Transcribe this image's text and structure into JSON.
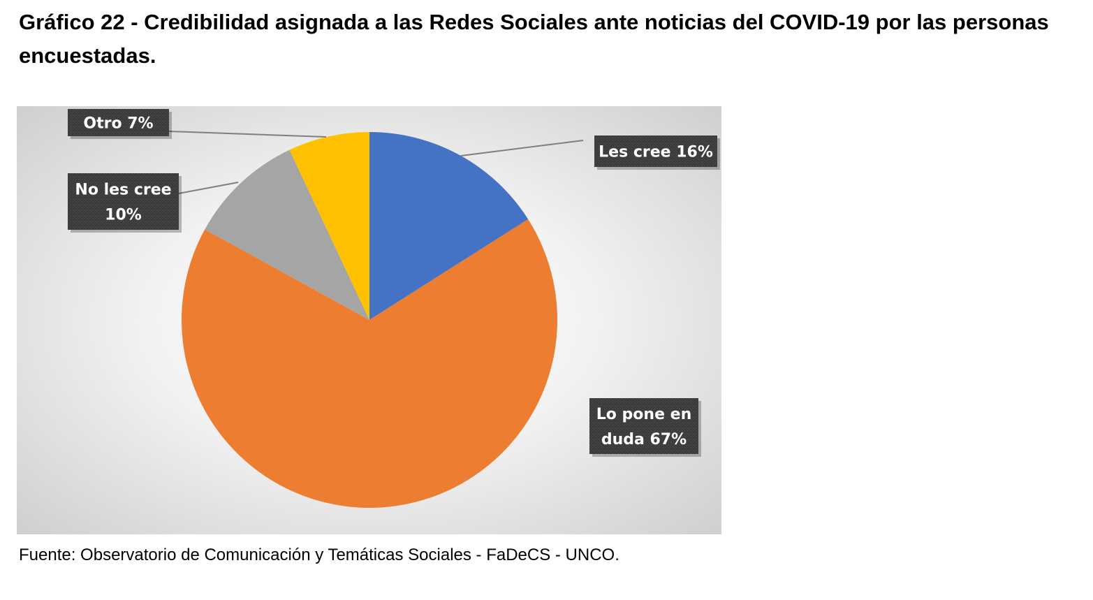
{
  "title": "Gráfico 22 - Credibilidad asignada a las Redes Sociales ante noticias del COVID-19 por las personas encuestadas.",
  "source": "Fuente: Observatorio de Comunicación y Temáticas Sociales - FaDeCS - UNCO.",
  "chart_data": {
    "type": "pie",
    "title": "Gráfico 22 - Credibilidad asignada a las Redes Sociales ante noticias del COVID-19 por las personas encuestadas.",
    "legend": "none",
    "slices": [
      {
        "name": "Les cree",
        "value": 16,
        "color": "#4472C4",
        "label_lines": [
          "Les cree 16%"
        ]
      },
      {
        "name": "Lo pone en duda",
        "value": 67,
        "color": "#ED7D31",
        "label_lines": [
          "Lo pone en",
          "duda 67%"
        ]
      },
      {
        "name": "No les cree",
        "value": 10,
        "color": "#A5A5A5",
        "label_lines": [
          "No les cree",
          "10%"
        ]
      },
      {
        "name": "Otro",
        "value": 7,
        "color": "#FFC000",
        "label_lines": [
          "Otro 7%"
        ]
      }
    ]
  }
}
